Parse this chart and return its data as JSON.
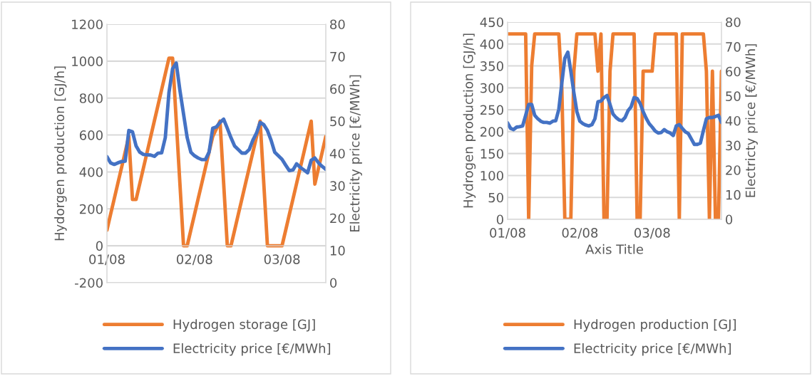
{
  "chart_data": [
    {
      "type": "line",
      "ylabel": "Hydorgen production [GJ/h]",
      "y2label": "Electricity price [€/MWh]",
      "categories": [
        "01/08",
        null,
        null,
        null,
        null,
        null,
        null,
        null,
        null,
        null,
        null,
        null,
        null,
        null,
        null,
        null,
        null,
        null,
        null,
        null,
        null,
        null,
        null,
        null,
        "02/08",
        null,
        null,
        null,
        null,
        null,
        null,
        null,
        null,
        null,
        null,
        null,
        null,
        null,
        null,
        null,
        null,
        null,
        null,
        null,
        null,
        null,
        null,
        null,
        "03/08",
        null,
        null,
        null,
        null,
        null,
        null,
        null,
        null,
        null,
        null,
        null,
        null
      ],
      "ylim": [
        -200,
        1200
      ],
      "yticks": [
        -200,
        0,
        200,
        400,
        600,
        800,
        1000,
        1200
      ],
      "y2lim": [
        0,
        80
      ],
      "y2ticks": [
        0,
        10,
        20,
        30,
        40,
        50,
        60,
        70,
        80
      ],
      "grid": "y",
      "legend": "bottom",
      "series": [
        {
          "name": "Hydrogen storage [GJ]",
          "color": "#ed7d31",
          "values": [
            85,
            170,
            254,
            339,
            423,
            508,
            592,
            251,
            251,
            336,
            421,
            506,
            591,
            676,
            761,
            846,
            931,
            1016,
            1016,
            677,
            339,
            0,
            0,
            85,
            169,
            254,
            338,
            423,
            508,
            592,
            633,
            675,
            338,
            0,
            0,
            84,
            169,
            253,
            338,
            422,
            506,
            591,
            675,
            338,
            0,
            0,
            0,
            0,
            0,
            84,
            169,
            253,
            338,
            422,
            506,
            591,
            675,
            334,
            420,
            506,
            592
          ]
        },
        {
          "name": "Electricity price [€/MWh]",
          "color": "#4472c4",
          "axis": "y2",
          "values": [
            39.0,
            37.1,
            36.6,
            37.1,
            37.5,
            37.6,
            47.1,
            46.7,
            42.3,
            40.4,
            39.7,
            39.6,
            39.5,
            39.1,
            40.1,
            40.2,
            44.9,
            58.8,
            66.2,
            68.0,
            59.6,
            52.2,
            44.9,
            40.4,
            39.3,
            38.6,
            38.1,
            38.1,
            40.4,
            47.8,
            48.2,
            49.6,
            50.6,
            47.8,
            44.9,
            42.3,
            41.2,
            40.1,
            40.1,
            41.2,
            44.1,
            46.3,
            49.6,
            48.9,
            47.1,
            44.1,
            40.4,
            39.3,
            38.2,
            36.4,
            34.7,
            34.9,
            36.8,
            35.7,
            34.9,
            34.0,
            37.9,
            38.6,
            37.1,
            36.0,
            35.1
          ]
        }
      ]
    },
    {
      "type": "line",
      "xlabel": "Axis Title",
      "ylabel": "Hydrogen production [GJ/h]",
      "y2label": "Electricty price [€/MWh]",
      "categories": [
        "01/08",
        null,
        null,
        null,
        null,
        null,
        null,
        null,
        null,
        null,
        null,
        null,
        null,
        null,
        null,
        null,
        null,
        null,
        null,
        null,
        null,
        null,
        null,
        null,
        "02/08",
        null,
        null,
        null,
        null,
        null,
        null,
        null,
        null,
        null,
        null,
        null,
        null,
        null,
        null,
        null,
        null,
        null,
        null,
        null,
        null,
        null,
        null,
        null,
        "03/08",
        null,
        null,
        null,
        null,
        null,
        null,
        null,
        null,
        null,
        null,
        null,
        null,
        null,
        null,
        null,
        null,
        null,
        null,
        null,
        null,
        null,
        null,
        null
      ],
      "ylim": [
        0,
        450
      ],
      "yticks": [
        0,
        50,
        100,
        150,
        200,
        250,
        300,
        350,
        400,
        450
      ],
      "y2lim": [
        0,
        80
      ],
      "y2ticks": [
        0,
        10,
        20,
        30,
        40,
        50,
        60,
        70,
        80
      ],
      "grid": "y",
      "legend": "bottom",
      "series": [
        {
          "name": "Hydrogen production [GJ]",
          "color": "#ed7d31",
          "values": [
            423,
            423,
            423,
            423,
            423,
            423,
            423,
            0,
            350,
            423,
            423,
            423,
            423,
            423,
            423,
            423,
            423,
            423,
            300,
            0,
            0,
            0,
            338,
            423,
            423,
            423,
            423,
            423,
            423,
            423,
            338,
            423,
            0,
            0,
            338,
            423,
            423,
            423,
            423,
            423,
            423,
            423,
            423,
            0,
            0,
            338,
            338,
            338,
            338,
            423,
            423,
            423,
            423,
            423,
            423,
            423,
            423,
            0,
            423,
            423,
            423,
            423,
            423,
            423,
            423,
            423,
            338,
            0,
            338,
            0,
            0,
            338
          ]
        },
        {
          "name": "Electricity price [€/MWh]",
          "color": "#4472c4",
          "axis": "y2",
          "values": [
            39.1,
            36.9,
            36.4,
            37.4,
            37.6,
            37.9,
            42.2,
            46.6,
            46.6,
            42.2,
            40.8,
            39.8,
            39.3,
            39.3,
            39.0,
            39.8,
            40.0,
            44.6,
            55.2,
            65.3,
            67.8,
            60.0,
            51.4,
            43.7,
            39.8,
            38.8,
            38.2,
            37.9,
            38.4,
            40.8,
            47.7,
            48.0,
            49.4,
            50.2,
            46.6,
            42.7,
            41.3,
            40.3,
            40.0,
            41.3,
            44.1,
            45.6,
            49.4,
            49.0,
            47.0,
            43.7,
            41.0,
            38.8,
            37.4,
            35.8,
            35.0,
            35.2,
            36.4,
            35.5,
            35.0,
            34.0,
            37.9,
            38.4,
            36.9,
            35.5,
            34.8,
            32.6,
            30.4,
            30.4,
            30.9,
            36.0,
            40.8,
            41.3,
            41.3,
            41.7,
            42.2,
            39.3
          ]
        }
      ]
    }
  ]
}
